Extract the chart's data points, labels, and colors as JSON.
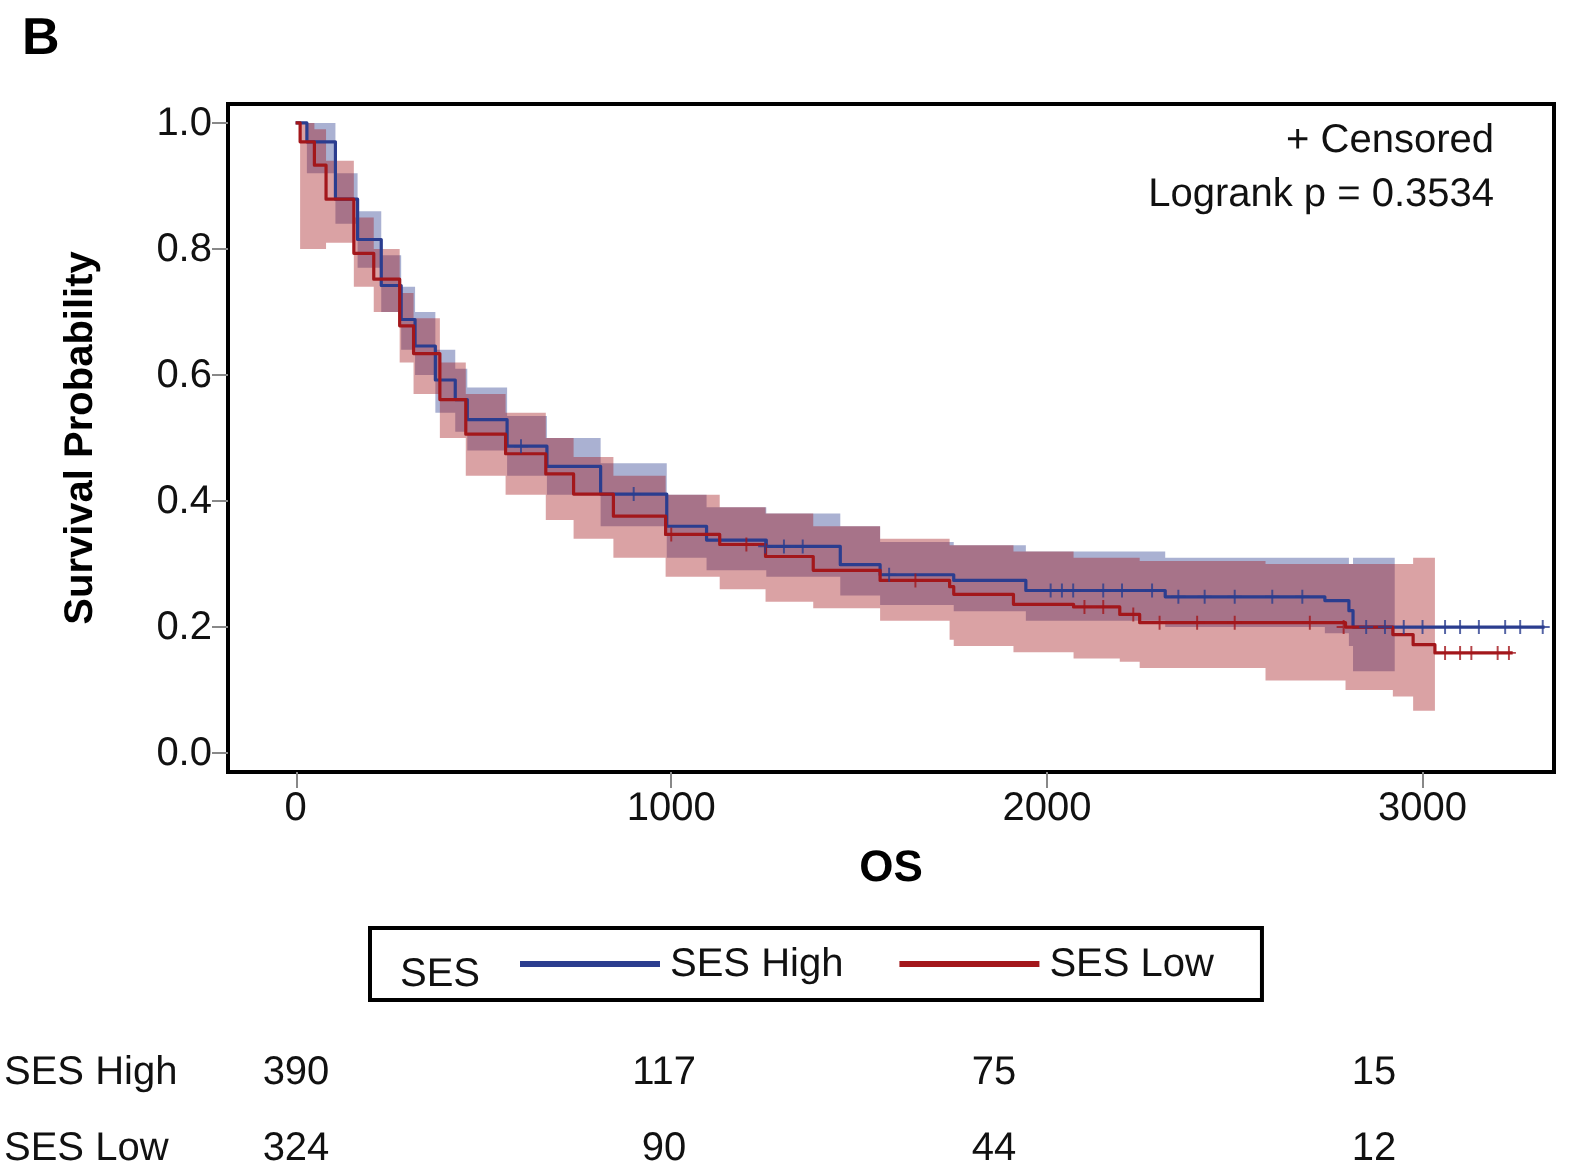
{
  "chart_data": {
    "type": "step",
    "title": "B",
    "xlabel": "OS",
    "ylabel": "Survival Probability",
    "legend_title": "SES",
    "legend": "bottom",
    "grid": false,
    "xlim": [
      -180,
      3350
    ],
    "xticks": [
      0,
      1000,
      2000,
      3000
    ],
    "ylim": [
      -0.03,
      1.03
    ],
    "yticks": [
      {
        "value": 0,
        "label": "0.0"
      },
      0.2,
      0.4,
      0.6,
      0.8,
      {
        "value": 1,
        "label": "1.0"
      }
    ],
    "annotations": [
      "+ Censored",
      "Logrank p = 0.3534",
      "SES High",
      "390",
      "117",
      "75",
      "15",
      "SES Low",
      "324",
      "90",
      "44",
      "12"
    ],
    "series": [
      {
        "name": "SES High",
        "color": "#2b3d8f",
        "marker": "none",
        "x": [
          0,
          30,
          106,
          165,
          228,
          281,
          318,
          372,
          425,
          457,
          563,
          669,
          812,
          988,
          1094,
          1253,
          1450,
          1556,
          1752,
          1944,
          2315,
          2740,
          2804,
          2815,
          2926,
          3325
        ],
        "values": [
          1.0,
          0.97,
          0.879,
          0.815,
          0.742,
          0.688,
          0.646,
          0.592,
          0.561,
          0.529,
          0.487,
          0.455,
          0.411,
          0.36,
          0.338,
          0.328,
          0.299,
          0.283,
          0.274,
          0.258,
          0.248,
          0.242,
          0.226,
          0.2,
          0.2,
          0.2
        ],
        "lower": [
          1.0,
          0.92,
          0.84,
          0.77,
          0.7,
          0.64,
          0.6,
          0.54,
          0.51,
          0.48,
          0.44,
          0.41,
          0.36,
          0.31,
          0.29,
          0.28,
          0.25,
          0.235,
          0.225,
          0.21,
          0.2,
          0.19,
          0.17,
          0.13,
          0.12,
          null
        ],
        "upper": [
          1.0,
          1.0,
          0.92,
          0.86,
          0.79,
          0.74,
          0.7,
          0.64,
          0.61,
          0.58,
          0.535,
          0.5,
          0.46,
          0.41,
          0.39,
          0.38,
          0.36,
          0.335,
          0.33,
          0.32,
          0.31,
          0.31,
          0.3,
          0.31,
          0.31,
          null
        ]
      },
      {
        "name": "SES Low",
        "color": "#a3171b",
        "marker": "none",
        "x": [
          0,
          12,
          50,
          81,
          155,
          208,
          277,
          314,
          384,
          453,
          559,
          666,
          740,
          846,
          985,
          1129,
          1251,
          1378,
          1556,
          1741,
          1752,
          1911,
          2071,
          2194,
          2247,
          2582,
          2795,
          2921,
          2975,
          3033,
          3240
        ],
        "values": [
          1.0,
          0.97,
          0.933,
          0.879,
          0.793,
          0.752,
          0.678,
          0.634,
          0.561,
          0.506,
          0.475,
          0.443,
          0.411,
          0.376,
          0.347,
          0.331,
          0.312,
          0.29,
          0.274,
          0.264,
          0.252,
          0.236,
          0.232,
          0.22,
          0.207,
          0.207,
          0.2,
          0.188,
          0.172,
          0.159,
          0.159
        ],
        "lower": [
          1.0,
          0.8,
          0.8,
          0.81,
          0.74,
          0.7,
          0.62,
          0.57,
          0.5,
          0.44,
          0.41,
          0.37,
          0.34,
          0.31,
          0.28,
          0.26,
          0.24,
          0.23,
          0.21,
          0.18,
          0.17,
          0.16,
          0.15,
          0.145,
          0.135,
          0.115,
          0.1,
          0.09,
          0.067,
          0.067,
          null
        ],
        "upper": [
          1.0,
          1.0,
          0.99,
          0.94,
          0.85,
          0.8,
          0.73,
          0.69,
          0.62,
          0.57,
          0.54,
          0.5,
          0.47,
          0.44,
          0.41,
          0.39,
          0.38,
          0.36,
          0.34,
          0.33,
          0.33,
          0.32,
          0.31,
          0.31,
          0.305,
          0.3,
          0.3,
          0.3,
          0.31,
          0.31,
          null
        ]
      },
      {
        "type": "scatter",
        "color": "#2b3d8f",
        "marker": "cross",
        "x": [
          600,
          900,
          1250,
          1300,
          1350,
          1580,
          2010,
          2040,
          2070,
          2150,
          2200,
          2280,
          2350,
          2420,
          2500,
          2600,
          2680,
          2850,
          2900,
          2950,
          3000,
          3060,
          3100,
          3150,
          3220,
          3260,
          3320
        ],
        "values": [
          0.487,
          0.411,
          0.328,
          0.328,
          0.328,
          0.283,
          0.258,
          0.258,
          0.258,
          0.258,
          0.258,
          0.258,
          0.248,
          0.248,
          0.248,
          0.248,
          0.248,
          0.2,
          0.2,
          0.2,
          0.2,
          0.2,
          0.2,
          0.2,
          0.2,
          0.2,
          0.2
        ]
      },
      {
        "type": "scatter",
        "color": "#a3171b",
        "marker": "cross",
        "x": [
          1000,
          1200,
          1650,
          2100,
          2150,
          2230,
          2300,
          2400,
          2500,
          2700,
          2790,
          3060,
          3100,
          3130,
          3200,
          3230
        ],
        "values": [
          0.347,
          0.331,
          0.274,
          0.232,
          0.232,
          0.22,
          0.207,
          0.207,
          0.207,
          0.207,
          0.2,
          0.159,
          0.159,
          0.159,
          0.159,
          0.159
        ]
      }
    ]
  }
}
